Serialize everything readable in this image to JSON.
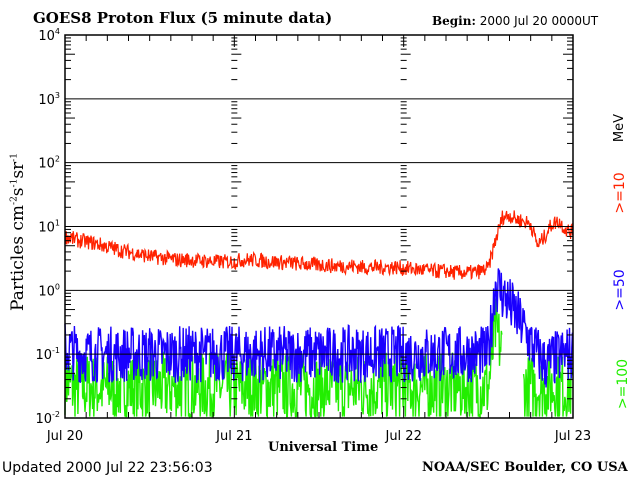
{
  "chart_data": {
    "type": "line",
    "title": "GOES8 Proton Flux (5 minute data)",
    "begin_label": "Begin:",
    "begin_value": "2000 Jul 20 0000UT",
    "xlabel": "Universal Time",
    "ylabel_parts": [
      "Particles cm",
      "-2",
      "s",
      "-1",
      "sr",
      "-1"
    ],
    "y_scale": "log",
    "ylim": [
      0.01,
      10000
    ],
    "y_ticks": [
      {
        "base": "10",
        "exp": "4"
      },
      {
        "base": "10",
        "exp": "3"
      },
      {
        "base": "10",
        "exp": "2"
      },
      {
        "base": "10",
        "exp": "1"
      },
      {
        "base": "10",
        "exp": "0"
      },
      {
        "base": "10",
        "exp": "-1"
      },
      {
        "base": "10",
        "exp": "-2"
      }
    ],
    "x_ticks": [
      "Jul 20",
      "Jul 21",
      "Jul 22",
      "Jul 23"
    ],
    "x_range_hours": [
      0,
      72
    ],
    "grid": "horizontal decade lines",
    "units_label": "MeV",
    "series": [
      {
        "name": ">=10",
        "color": "#ff2200",
        "hourly": [
          7,
          6.5,
          6,
          5.8,
          5.5,
          5.2,
          4.8,
          4.5,
          4.2,
          4,
          3.8,
          3.6,
          3.4,
          3.3,
          3.2,
          3.1,
          3,
          3,
          3,
          2.9,
          2.9,
          2.8,
          2.8,
          2.8,
          2.8,
          3,
          3,
          3,
          2.9,
          2.8,
          2.8,
          2.7,
          2.7,
          2.6,
          2.6,
          2.5,
          2.5,
          2.5,
          2.4,
          2.4,
          2.4,
          2.4,
          2.3,
          2.3,
          2.3,
          2.3,
          2.3,
          2.3,
          2.2,
          2.2,
          2.1,
          2.1,
          2,
          2,
          2,
          1.9,
          1.9,
          1.9,
          1.9,
          2,
          2.2,
          6,
          14,
          15,
          13,
          12,
          11,
          5,
          7,
          11,
          12,
          9,
          8
        ]
      },
      {
        "name": ">=50",
        "color": "#1a00ff",
        "hourly": [
          0.12,
          0.11,
          0.1,
          0.1,
          0.1,
          0.1,
          0.1,
          0.1,
          0.1,
          0.1,
          0.1,
          0.1,
          0.1,
          0.1,
          0.1,
          0.1,
          0.1,
          0.1,
          0.1,
          0.1,
          0.1,
          0.1,
          0.1,
          0.1,
          0.1,
          0.1,
          0.1,
          0.1,
          0.1,
          0.1,
          0.1,
          0.1,
          0.1,
          0.1,
          0.1,
          0.1,
          0.1,
          0.1,
          0.1,
          0.1,
          0.1,
          0.1,
          0.1,
          0.1,
          0.1,
          0.1,
          0.1,
          0.1,
          0.1,
          0.1,
          0.1,
          0.1,
          0.1,
          0.1,
          0.1,
          0.1,
          0.1,
          0.1,
          0.1,
          0.1,
          0.1,
          1.3,
          0.9,
          0.6,
          0.4,
          0.25,
          0.15,
          0.1,
          0.07,
          0.08,
          0.09,
          0.1,
          0.1
        ]
      },
      {
        "name": ">=100",
        "color": "#22ee00",
        "hourly": [
          0.04,
          0.03,
          0.03,
          0.03,
          0.03,
          0.03,
          0.03,
          0.03,
          0.03,
          0.03,
          0.03,
          0.03,
          0.03,
          0.03,
          0.03,
          0.03,
          0.03,
          0.03,
          0.03,
          0.03,
          0.03,
          0.03,
          0.03,
          0.03,
          0.03,
          0.03,
          0.03,
          0.03,
          0.03,
          0.03,
          0.03,
          0.03,
          0.03,
          0.03,
          0.03,
          0.03,
          0.03,
          0.03,
          0.03,
          0.03,
          0.03,
          0.03,
          0.03,
          0.03,
          0.03,
          0.03,
          0.03,
          0.03,
          0.03,
          0.03,
          0.03,
          0.03,
          0.03,
          0.03,
          0.03,
          0.03,
          0.03,
          0.03,
          0.03,
          0.03,
          0.03,
          0.25,
          0.1,
          null,
          null,
          0.03,
          0.03,
          0.03,
          0.03,
          0.03,
          0.03,
          0.03,
          0.03
        ]
      }
    ]
  },
  "footer": {
    "updated": "Updated 2000 Jul 22 23:56:03",
    "credit": "NOAA/SEC Boulder, CO USA"
  }
}
